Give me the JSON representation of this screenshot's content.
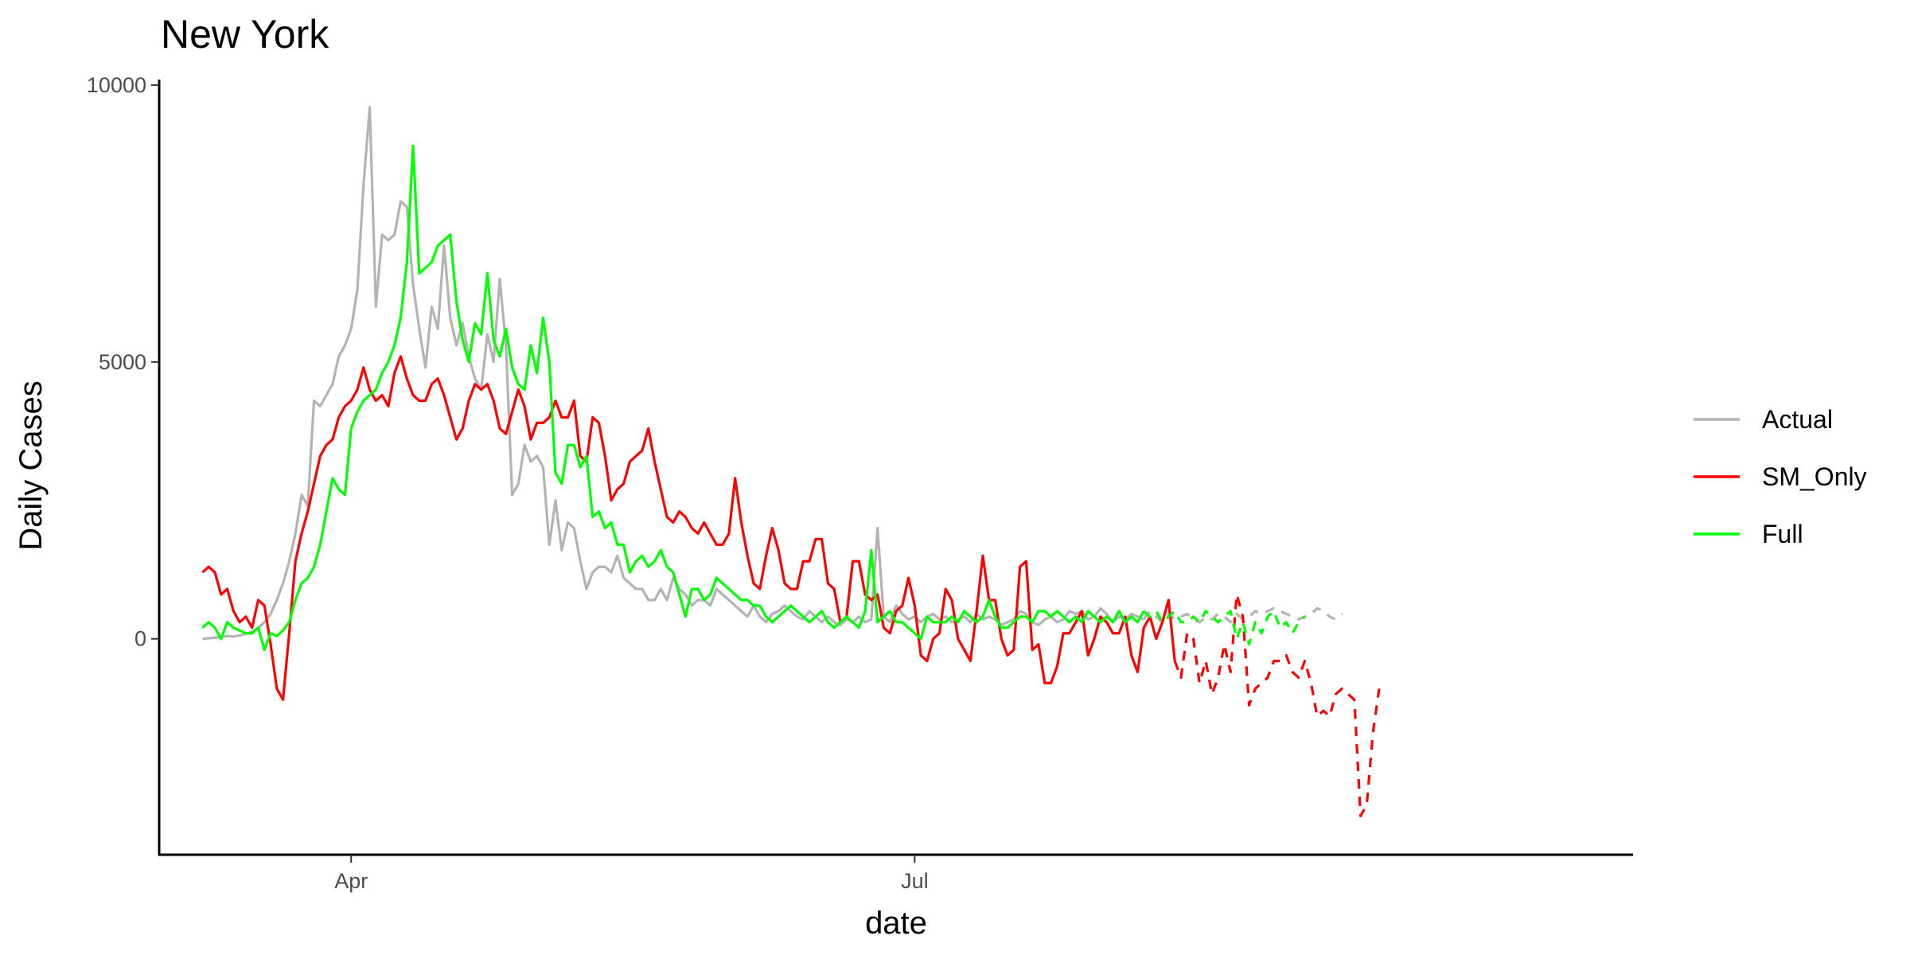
{
  "chart_data": {
    "type": "line",
    "title": "New York",
    "xlabel": "date",
    "ylabel": "Daily Cases",
    "x_axis_type": "date",
    "xlim": [
      "2020-03-01",
      "2020-10-25"
    ],
    "ylim": [
      -3900,
      10100
    ],
    "x_ticks": [
      {
        "date": "2020-04-01",
        "label": "Apr"
      },
      {
        "date": "2020-07-01",
        "label": "Jul"
      }
    ],
    "y_ticks": [
      {
        "value": 0,
        "label": "0"
      },
      {
        "value": 5000,
        "label": "5000"
      },
      {
        "value": 10000,
        "label": "10000"
      }
    ],
    "grid": false,
    "legend_position": "right",
    "start_date": "2020-03-08",
    "series": [
      {
        "name": "Actual",
        "color": "#B3B3B3",
        "values": [
          0,
          10,
          20,
          30,
          50,
          40,
          60,
          90,
          130,
          200,
          300,
          450,
          700,
          1000,
          1400,
          1900,
          2600,
          2400,
          4300,
          4200,
          4400,
          4600,
          5100,
          5300,
          5600,
          6300,
          8200,
          9600,
          6000,
          7300,
          7200,
          7300,
          7900,
          7800,
          6400,
          5600,
          4900,
          6000,
          5600,
          7100,
          5800,
          5300,
          5700,
          5100,
          4700,
          4500,
          5500,
          5000,
          6500,
          5300,
          2600,
          2800,
          3500,
          3200,
          3300,
          3100,
          1700,
          2500,
          1600,
          2100,
          2000,
          1400,
          900,
          1200,
          1300,
          1300,
          1200,
          1500,
          1100,
          1000,
          900,
          900,
          700,
          700,
          900,
          700,
          1100,
          900,
          800,
          600,
          700,
          700,
          600,
          900,
          800,
          700,
          600,
          500,
          400,
          600,
          400,
          300,
          450,
          500,
          600,
          500,
          400,
          350,
          500,
          400,
          300,
          400,
          300,
          250,
          350,
          300,
          400,
          300,
          350,
          2000,
          400,
          300,
          600,
          450,
          350,
          400,
          300,
          400,
          450,
          350,
          400,
          300,
          350,
          400,
          300,
          450,
          350,
          400,
          350,
          250,
          300,
          350,
          500,
          450,
          300,
          250,
          350,
          400,
          300,
          350,
          500,
          450,
          500,
          350,
          400,
          550,
          450,
          300,
          400,
          350,
          450,
          400,
          350,
          500,
          400,
          300,
          450,
          350,
          400,
          450,
          350,
          300,
          400,
          350,
          450,
          400,
          300,
          450,
          350,
          400,
          500,
          450,
          500,
          550,
          500,
          450,
          400,
          350,
          400,
          450,
          550,
          500,
          400,
          350,
          450
        ],
        "projected_from_index": 152
      },
      {
        "name": "SM_Only",
        "color": "#FF0000",
        "values": [
          1200,
          1300,
          1200,
          800,
          900,
          500,
          300,
          400,
          200,
          700,
          600,
          -100,
          -900,
          -1100,
          100,
          1400,
          1900,
          2300,
          2800,
          3300,
          3500,
          3600,
          4000,
          4200,
          4300,
          4500,
          4900,
          4500,
          4300,
          4400,
          4200,
          4800,
          5100,
          4700,
          4400,
          4300,
          4300,
          4600,
          4700,
          4400,
          4000,
          3600,
          3800,
          4300,
          4600,
          4500,
          4600,
          4300,
          3800,
          3700,
          4100,
          4500,
          4200,
          3600,
          3900,
          3900,
          4000,
          4300,
          4000,
          4000,
          4300,
          3300,
          3200,
          4000,
          3900,
          3300,
          2500,
          2700,
          2800,
          3200,
          3300,
          3400,
          3800,
          3200,
          2700,
          2200,
          2100,
          2300,
          2200,
          2000,
          1900,
          2100,
          1900,
          1700,
          1700,
          1900,
          2900,
          2100,
          1500,
          1000,
          900,
          1500,
          2000,
          1600,
          1000,
          900,
          900,
          1400,
          1400,
          1800,
          1800,
          1000,
          900,
          300,
          400,
          1400,
          1400,
          800,
          700,
          800,
          200,
          100,
          500,
          600,
          1100,
          600,
          -300,
          -400,
          0,
          100,
          900,
          700,
          0,
          -200,
          -400,
          500,
          1500,
          700,
          700,
          0,
          -300,
          -200,
          1300,
          1400,
          -200,
          -100,
          -800,
          -800,
          -500,
          100,
          100,
          300,
          500,
          -300,
          0,
          400,
          300,
          100,
          100,
          400,
          -300,
          -600,
          200,
          400,
          0,
          300,
          700,
          -400,
          -700,
          100,
          0,
          -800,
          -400,
          -1000,
          -700,
          -100,
          -600,
          800,
          400,
          -1200,
          -900,
          -800,
          -700,
          -400,
          -400,
          -300,
          -600,
          -700,
          -400,
          -800,
          -1400,
          -1300,
          -1400,
          -1000,
          -900,
          -1000,
          -1100,
          -3200,
          -3000,
          -1700,
          -900
        ],
        "projected_from_index": 157
      },
      {
        "name": "Full",
        "color": "#00FF00",
        "values": [
          200,
          300,
          200,
          0,
          300,
          200,
          150,
          100,
          100,
          200,
          -200,
          100,
          50,
          150,
          300,
          700,
          1000,
          1100,
          1300,
          1700,
          2300,
          2900,
          2700,
          2600,
          3800,
          4100,
          4300,
          4400,
          4500,
          4800,
          5000,
          5300,
          5800,
          6800,
          8900,
          6600,
          6700,
          6800,
          7100,
          7200,
          7300,
          6100,
          5400,
          5000,
          5700,
          5500,
          6600,
          5400,
          5100,
          5600,
          4900,
          4600,
          4500,
          5300,
          4800,
          5800,
          5000,
          3000,
          2800,
          3500,
          3500,
          3100,
          3300,
          2200,
          2300,
          2000,
          2100,
          1700,
          1700,
          1200,
          1400,
          1500,
          1300,
          1400,
          1600,
          1300,
          1200,
          800,
          400,
          900,
          900,
          700,
          800,
          1100,
          1000,
          900,
          800,
          700,
          700,
          600,
          600,
          400,
          300,
          400,
          500,
          600,
          500,
          400,
          300,
          400,
          500,
          300,
          200,
          300,
          400,
          300,
          200,
          500,
          1600,
          300,
          400,
          500,
          300,
          300,
          200,
          100,
          0,
          400,
          300,
          300,
          300,
          400,
          300,
          500,
          400,
          300,
          400,
          700,
          400,
          200,
          200,
          300,
          400,
          400,
          300,
          500,
          500,
          400,
          500,
          400,
          300,
          400,
          300,
          500,
          400,
          300,
          400,
          300,
          500,
          300,
          400,
          300,
          500,
          400,
          500,
          300,
          400,
          500,
          300,
          300,
          400,
          300,
          500,
          400,
          300,
          400,
          500,
          0,
          300,
          -100,
          300,
          100,
          400,
          500,
          200,
          300,
          100,
          300,
          400
        ],
        "projected_from_index": 152
      }
    ]
  }
}
